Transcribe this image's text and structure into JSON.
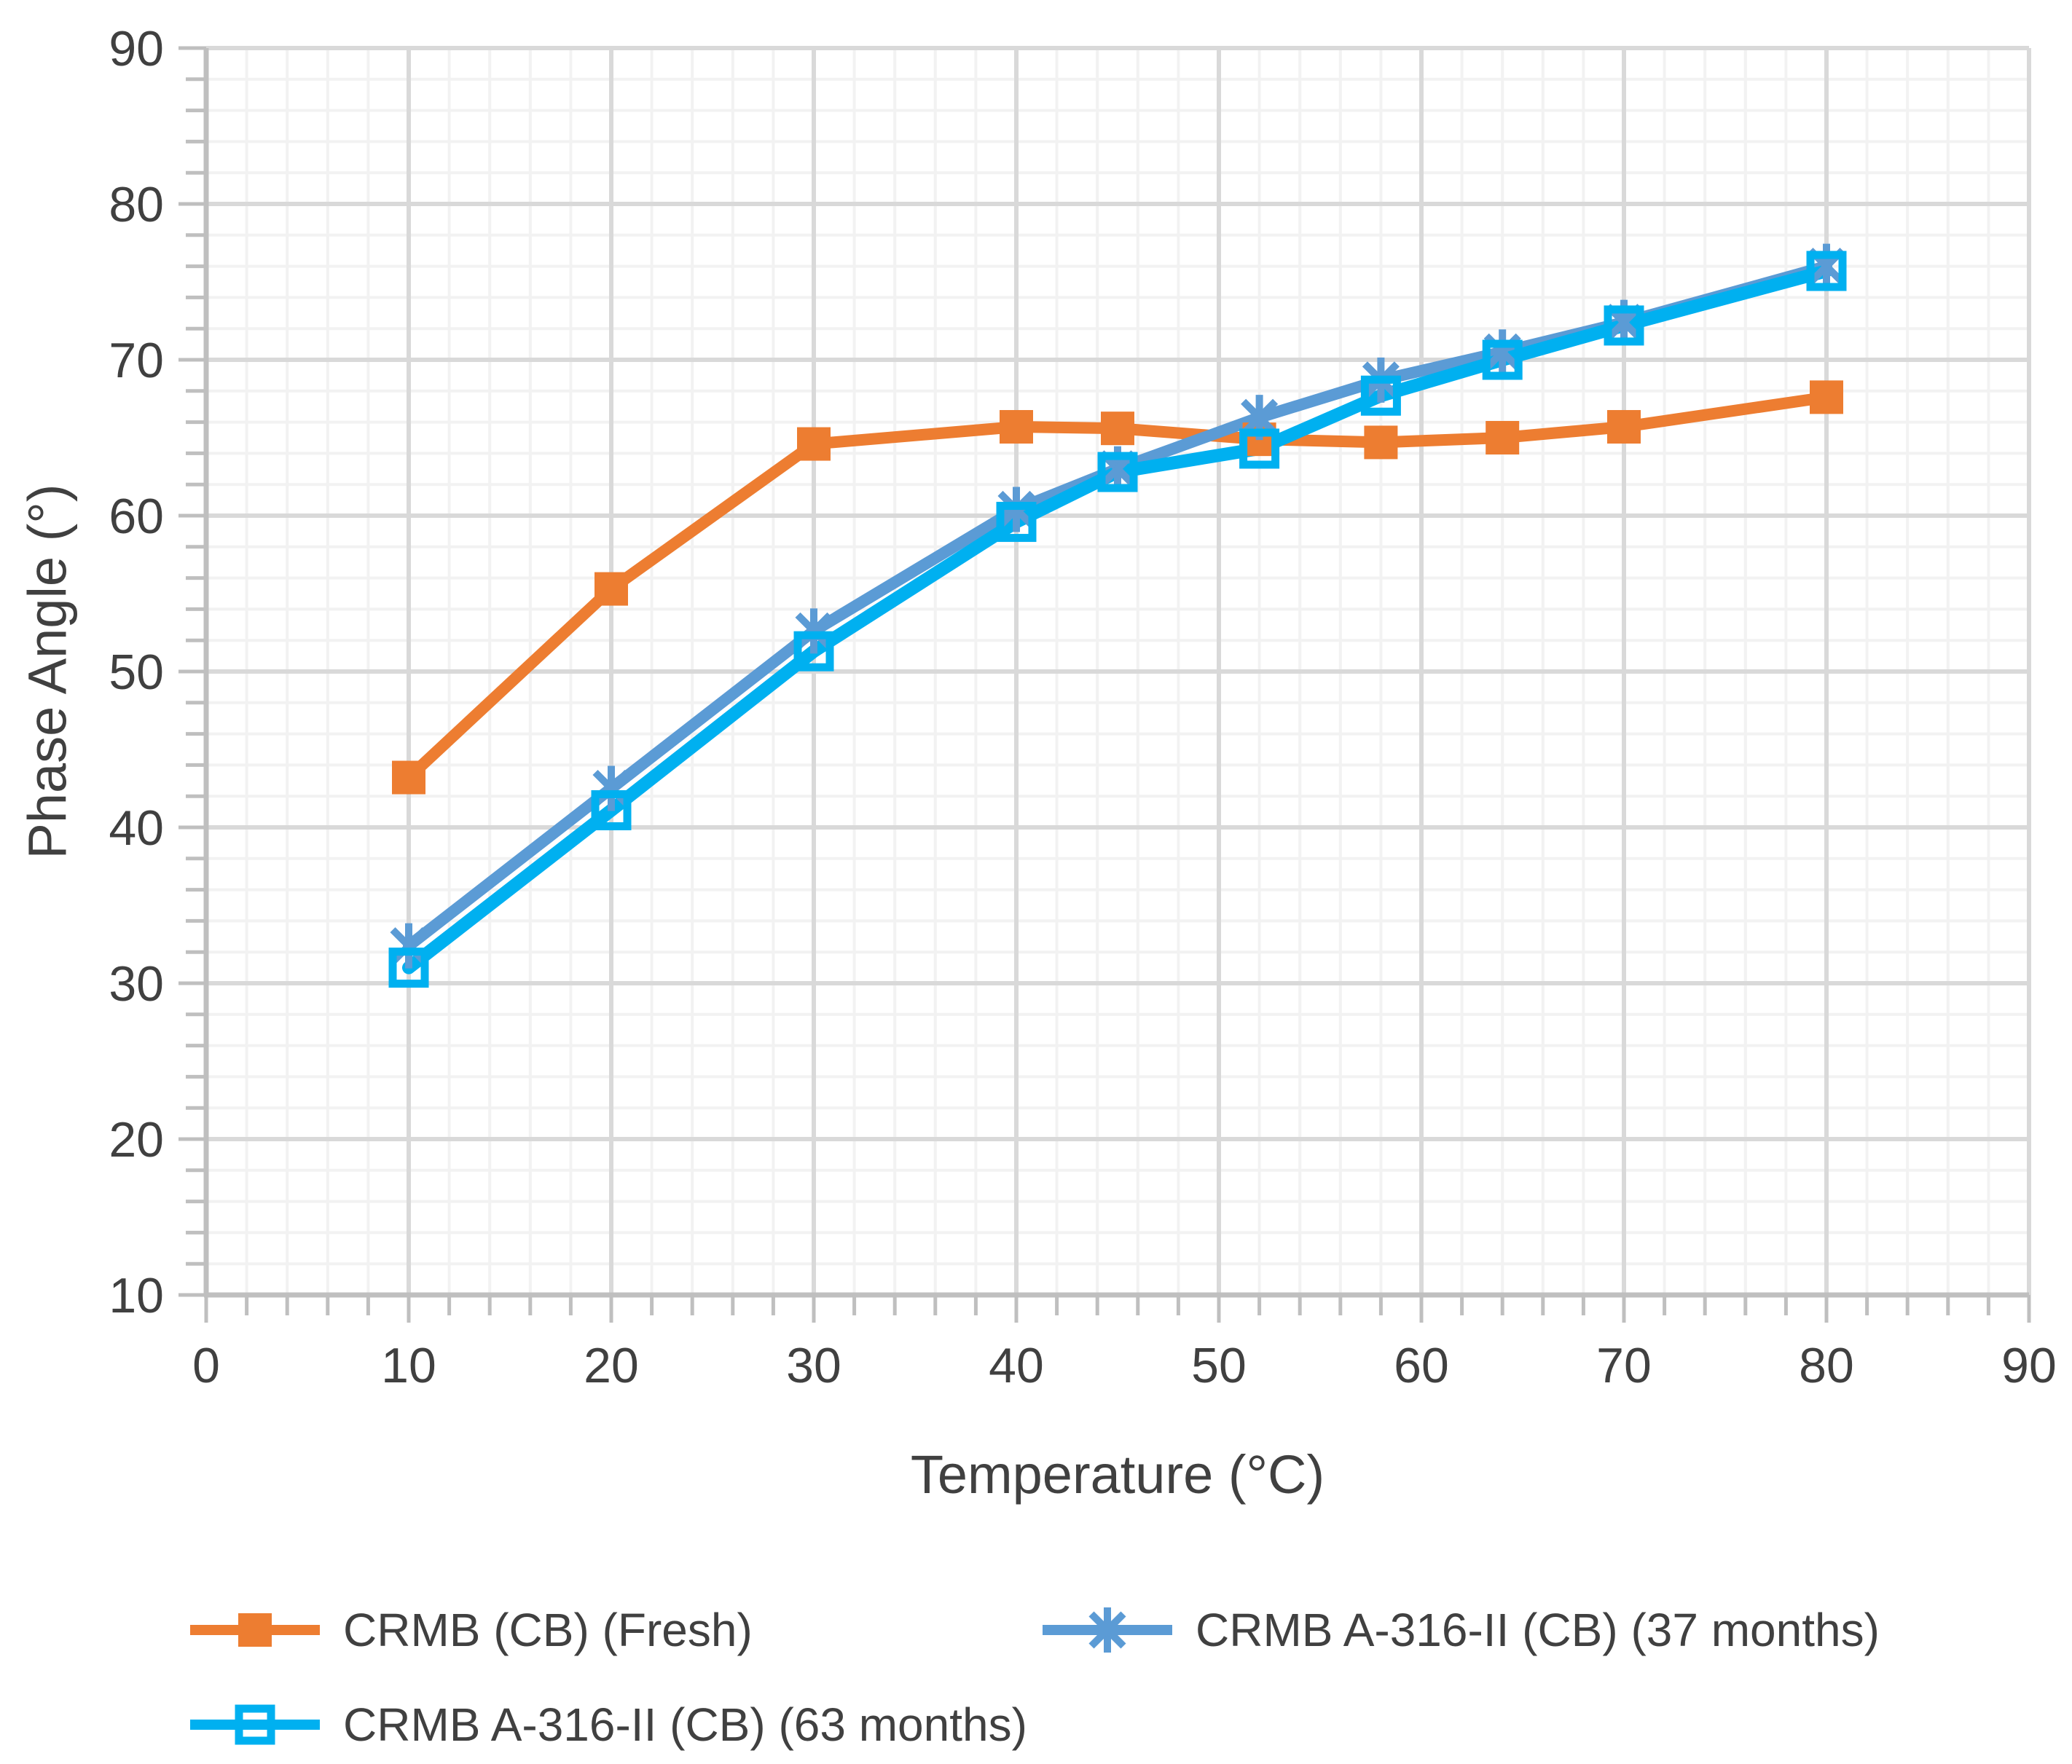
{
  "chart_data": {
    "type": "line",
    "x": [
      10,
      20,
      30,
      40,
      45,
      52,
      58,
      64,
      70,
      80
    ],
    "series": [
      {
        "name": "CRMB (CB) (Fresh)",
        "color": "#ED7D31",
        "marker": "filled-square",
        "values": [
          43.2,
          55.3,
          64.6,
          65.7,
          65.6,
          64.9,
          64.7,
          65.0,
          65.7,
          67.6
        ]
      },
      {
        "name": "CRMB A-316-II (CB) (37 months)",
        "color": "#5B9BD5",
        "marker": "asterisk",
        "values": [
          32.4,
          42.5,
          52.6,
          60.4,
          63.0,
          66.3,
          68.7,
          70.5,
          72.4,
          76.0
        ]
      },
      {
        "name": "CRMB A-316-II (CB) (63 months)",
        "color": "#00B0F0",
        "marker": "open-square",
        "values": [
          31.0,
          41.1,
          51.3,
          59.6,
          62.8,
          64.3,
          67.7,
          70.0,
          72.2,
          75.7
        ]
      }
    ],
    "xlabel": "Temperature (°C)",
    "ylabel": "Phase Angle (°)",
    "xlim": [
      0,
      90
    ],
    "ylim": [
      10,
      90
    ],
    "major_step": 10,
    "minor_step": 2,
    "grid": "on",
    "legend_position": "bottom",
    "colors": {
      "axis": "#BFBFBF",
      "grid_major": "#D9D9D9",
      "grid_minor": "#F2F2F2",
      "text": "#404040"
    }
  }
}
